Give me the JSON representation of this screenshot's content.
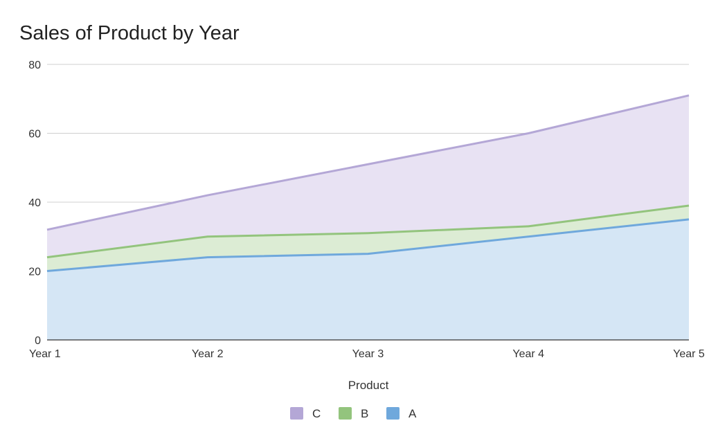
{
  "chart_data": {
    "type": "area",
    "stacked": true,
    "title": "Sales of Product by Year",
    "xlabel": "Product",
    "ylabel": "",
    "categories": [
      "Year 1",
      "Year 2",
      "Year 3",
      "Year 4",
      "Year 5"
    ],
    "ylim": [
      0,
      80
    ],
    "yticks": [
      "0",
      "20",
      "40",
      "60",
      "80"
    ],
    "grid": true,
    "legend_position": "bottom",
    "series": [
      {
        "name": "A",
        "values": [
          20,
          24,
          25,
          30,
          35
        ],
        "color": "#6fa8dc",
        "fill": "#d5e6f5"
      },
      {
        "name": "B",
        "values": [
          4,
          6,
          6,
          3,
          4
        ],
        "color": "#93c47d",
        "fill": "#dcecd4"
      },
      {
        "name": "C",
        "values": [
          8,
          12,
          20,
          27,
          32
        ],
        "color": "#b4a7d6",
        "fill": "#e8e2f3"
      }
    ],
    "legend_order": [
      "C",
      "B",
      "A"
    ]
  }
}
